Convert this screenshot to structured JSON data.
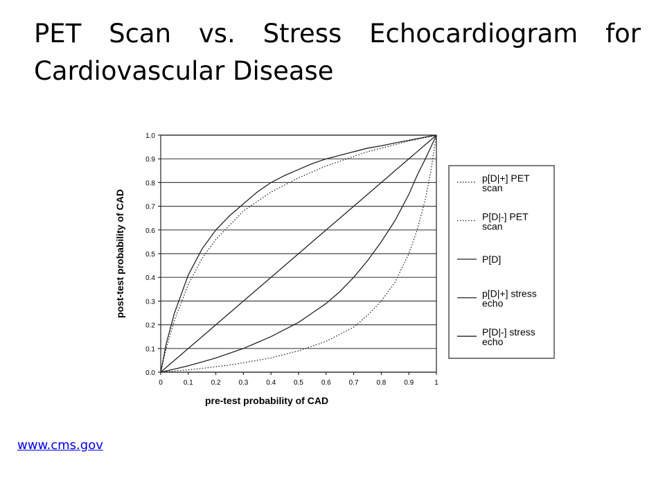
{
  "slide": {
    "title": "PET Scan vs. Stress Echocardiogram for Cardiovascular Disease",
    "source_link": "www.cms.gov"
  },
  "chart_data": {
    "type": "line",
    "xlabel": "pre-test probability of CAD",
    "ylabel": "post-test probability of CAD",
    "xlim": [
      0,
      1
    ],
    "ylim": [
      0,
      1
    ],
    "x_ticks": [
      "0",
      "0.1",
      "0.2",
      "0.3",
      "0.4",
      "0.5",
      "0.6",
      "0.7",
      "0.8",
      "0.9",
      "1"
    ],
    "y_ticks": [
      "0.0",
      "0.1",
      "0.2",
      "0.3",
      "0.4",
      "0.5",
      "0.6",
      "0.7",
      "0.8",
      "0.9",
      "1.0"
    ],
    "grid": "horizontal",
    "legend_position": "right",
    "x": [
      0,
      0.02,
      0.05,
      0.1,
      0.15,
      0.2,
      0.25,
      0.3,
      0.35,
      0.4,
      0.45,
      0.5,
      0.55,
      0.6,
      0.65,
      0.7,
      0.75,
      0.8,
      0.85,
      0.9,
      0.93,
      0.96,
      0.98,
      1.0
    ],
    "series": [
      {
        "name": "p[D|+] PET scan",
        "style": "dotted",
        "values": [
          0,
          0.1,
          0.22,
          0.37,
          0.48,
          0.56,
          0.62,
          0.68,
          0.72,
          0.76,
          0.79,
          0.82,
          0.845,
          0.87,
          0.89,
          0.91,
          0.93,
          0.945,
          0.96,
          0.975,
          0.982,
          0.99,
          0.995,
          1.0
        ]
      },
      {
        "name": "P[D|-] PET scan",
        "style": "dotted",
        "values": [
          0,
          0.002,
          0.005,
          0.01,
          0.016,
          0.023,
          0.03,
          0.04,
          0.05,
          0.06,
          0.075,
          0.09,
          0.11,
          0.13,
          0.16,
          0.19,
          0.24,
          0.3,
          0.38,
          0.5,
          0.6,
          0.73,
          0.85,
          1.0
        ]
      },
      {
        "name": "P[D]",
        "style": "solid",
        "values": [
          0,
          0.02,
          0.05,
          0.1,
          0.15,
          0.2,
          0.25,
          0.3,
          0.35,
          0.4,
          0.45,
          0.5,
          0.55,
          0.6,
          0.65,
          0.7,
          0.75,
          0.8,
          0.85,
          0.9,
          0.93,
          0.96,
          0.98,
          1.0
        ]
      },
      {
        "name": "p[D|+] stress echo",
        "style": "solid",
        "values": [
          0,
          0.12,
          0.25,
          0.41,
          0.52,
          0.6,
          0.66,
          0.71,
          0.76,
          0.8,
          0.83,
          0.855,
          0.88,
          0.9,
          0.915,
          0.93,
          0.945,
          0.955,
          0.967,
          0.978,
          0.985,
          0.992,
          0.996,
          1.0
        ]
      },
      {
        "name": "P[D|-] stress echo",
        "style": "solid",
        "values": [
          0,
          0.005,
          0.013,
          0.027,
          0.043,
          0.06,
          0.08,
          0.1,
          0.125,
          0.15,
          0.18,
          0.21,
          0.25,
          0.29,
          0.34,
          0.4,
          0.47,
          0.55,
          0.64,
          0.75,
          0.83,
          0.9,
          0.95,
          1.0
        ]
      }
    ]
  }
}
